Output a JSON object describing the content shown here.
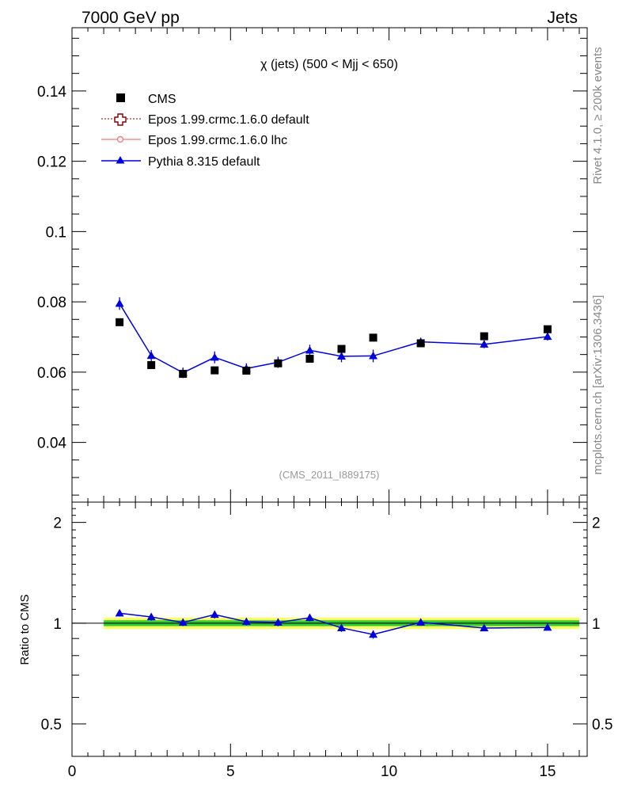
{
  "header": {
    "left": "7000 GeV pp",
    "right": "Jets"
  },
  "side_labels": {
    "rivet": "Rivet 4.1.0, ≥ 200k events",
    "mcplots": "mcplots.cern.ch [arXiv:1306.3436]"
  },
  "chart_data": {
    "type": "scatter",
    "title": "χ (jets) (500 < Mjj <  650)",
    "analysis_tag": "(CMS_2011_I889175)",
    "xlim": [
      0,
      16.25
    ],
    "main": {
      "ylim": [
        0.023,
        0.158
      ],
      "yticks": [
        0.04,
        0.06,
        0.08,
        0.1,
        0.12,
        0.14
      ],
      "ytick_labels": [
        "0.04",
        "0.06",
        "0.08",
        "0.1",
        "0.12",
        "0.14"
      ]
    },
    "ratio": {
      "ylabel": "Ratio to CMS",
      "ylim": [
        0.4,
        2.3
      ],
      "yticks": [
        0.5,
        1,
        2
      ],
      "ytick_labels": [
        "0.5",
        "1",
        "2"
      ]
    },
    "xticks": [
      0,
      5,
      10,
      15
    ],
    "xtick_labels": [
      "0",
      "5",
      "10",
      "15"
    ],
    "legend": [
      "CMS",
      "Epos 1.99.crmc.1.6.0 default",
      "Epos 1.99.crmc.1.6.0 lhc",
      "Pythia 8.315 default"
    ],
    "legend_position": "top-left",
    "bin_edges": [
      1,
      2,
      3,
      4,
      5,
      6,
      7,
      8,
      9,
      10,
      12,
      14,
      16
    ],
    "x": [
      1.5,
      2.5,
      3.5,
      4.5,
      5.5,
      6.5,
      7.5,
      8.5,
      9.5,
      11,
      13,
      15
    ],
    "series": [
      {
        "name": "CMS",
        "color": "#000000",
        "values": [
          0.0742,
          0.062,
          0.0595,
          0.0605,
          0.0604,
          0.0625,
          0.0638,
          0.0666,
          0.0698,
          0.0682,
          0.0702,
          0.0722
        ]
      },
      {
        "name": "Pythia 8.315 default",
        "color": "#0000dd",
        "values": [
          0.0795,
          0.0647,
          0.0598,
          0.0642,
          0.061,
          0.0628,
          0.0662,
          0.0645,
          0.0646,
          0.0686,
          0.0679,
          0.0701
        ],
        "errors": [
          0.0018,
          0.0016,
          0.0015,
          0.0017,
          0.0015,
          0.0016,
          0.0016,
          0.0017,
          0.0018,
          0.0012,
          0.0011,
          0.0011
        ],
        "ratio": [
          1.071,
          1.044,
          1.005,
          1.061,
          1.01,
          1.005,
          1.038,
          0.968,
          0.925,
          1.006,
          0.967,
          0.971
        ],
        "ratio_errors": [
          0.024,
          0.026,
          0.025,
          0.028,
          0.025,
          0.026,
          0.025,
          0.026,
          0.026,
          0.018,
          0.016,
          0.015
        ]
      }
    ],
    "ratio_band": {
      "inner": 0.02,
      "outer": 0.04,
      "inner_color": "#33cc33",
      "outer_color": "#ffff66"
    }
  }
}
